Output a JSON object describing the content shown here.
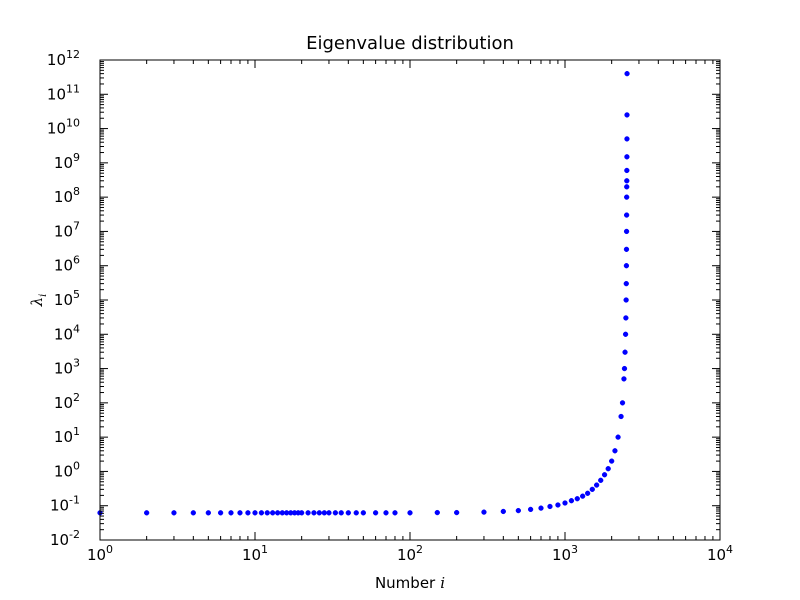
{
  "chart_data": {
    "type": "scatter",
    "title": "Eigenvalue distribution",
    "xlabel": "Number",
    "xlabel_var": "i",
    "ylabel_var": "λ",
    "ylabel_sub": "i",
    "x_scale": "log",
    "y_scale": "log",
    "xlim": [
      1,
      10000
    ],
    "ylim": [
      0.01,
      1000000000000
    ],
    "grid": false,
    "marker_color": "#0000ff",
    "x_ticks": [
      {
        "base": "10",
        "exp": "0"
      },
      {
        "base": "10",
        "exp": "1"
      },
      {
        "base": "10",
        "exp": "2"
      },
      {
        "base": "10",
        "exp": "3"
      },
      {
        "base": "10",
        "exp": "4"
      }
    ],
    "y_ticks": [
      {
        "base": "10",
        "exp": "-2"
      },
      {
        "base": "10",
        "exp": "-1"
      },
      {
        "base": "10",
        "exp": "0"
      },
      {
        "base": "10",
        "exp": "1"
      },
      {
        "base": "10",
        "exp": "2"
      },
      {
        "base": "10",
        "exp": "3"
      },
      {
        "base": "10",
        "exp": "4"
      },
      {
        "base": "10",
        "exp": "5"
      },
      {
        "base": "10",
        "exp": "6"
      },
      {
        "base": "10",
        "exp": "7"
      },
      {
        "base": "10",
        "exp": "8"
      },
      {
        "base": "10",
        "exp": "9"
      },
      {
        "base": "10",
        "exp": "10"
      },
      {
        "base": "10",
        "exp": "11"
      },
      {
        "base": "10",
        "exp": "12"
      }
    ],
    "series": [
      {
        "points": [
          [
            1,
            0.062
          ],
          [
            2,
            0.062
          ],
          [
            3,
            0.062
          ],
          [
            4,
            0.062
          ],
          [
            5,
            0.062
          ],
          [
            6,
            0.062
          ],
          [
            7,
            0.062
          ],
          [
            8,
            0.062
          ],
          [
            9,
            0.062
          ],
          [
            10,
            0.062
          ],
          [
            11,
            0.062
          ],
          [
            12,
            0.062
          ],
          [
            13,
            0.062
          ],
          [
            14,
            0.062
          ],
          [
            15,
            0.062
          ],
          [
            16,
            0.062
          ],
          [
            17,
            0.062
          ],
          [
            18,
            0.062
          ],
          [
            19,
            0.062
          ],
          [
            20,
            0.062
          ],
          [
            22,
            0.062
          ],
          [
            24,
            0.062
          ],
          [
            26,
            0.062
          ],
          [
            28,
            0.062
          ],
          [
            30,
            0.062
          ],
          [
            33,
            0.062
          ],
          [
            36,
            0.062
          ],
          [
            40,
            0.062
          ],
          [
            45,
            0.062
          ],
          [
            50,
            0.062
          ],
          [
            60,
            0.062
          ],
          [
            70,
            0.062
          ],
          [
            80,
            0.062
          ],
          [
            100,
            0.062
          ],
          [
            150,
            0.063
          ],
          [
            200,
            0.063
          ],
          [
            300,
            0.065
          ],
          [
            400,
            0.068
          ],
          [
            500,
            0.072
          ],
          [
            600,
            0.078
          ],
          [
            700,
            0.085
          ],
          [
            800,
            0.095
          ],
          [
            900,
            0.105
          ],
          [
            1000,
            0.12
          ],
          [
            1100,
            0.14
          ],
          [
            1200,
            0.16
          ],
          [
            1300,
            0.19
          ],
          [
            1400,
            0.23
          ],
          [
            1500,
            0.3
          ],
          [
            1600,
            0.4
          ],
          [
            1700,
            0.55
          ],
          [
            1800,
            0.8
          ],
          [
            1900,
            1.2
          ],
          [
            2000,
            2
          ],
          [
            2100,
            4
          ],
          [
            2200,
            10
          ],
          [
            2300,
            40
          ],
          [
            2350,
            100
          ],
          [
            2400,
            500
          ],
          [
            2420,
            1000
          ],
          [
            2440,
            3000
          ],
          [
            2460,
            10000
          ],
          [
            2470,
            30000
          ],
          [
            2480,
            100000
          ],
          [
            2485,
            300000
          ],
          [
            2490,
            1000000
          ],
          [
            2493,
            3000000
          ],
          [
            2496,
            10000000
          ],
          [
            2498,
            30000000
          ],
          [
            2500,
            100000000
          ],
          [
            2502,
            200000000
          ],
          [
            2504,
            300000000
          ],
          [
            2506,
            600000000
          ],
          [
            2508,
            1500000000
          ],
          [
            2510,
            5000000000
          ],
          [
            2512,
            25000000000
          ],
          [
            2514,
            400000000000
          ]
        ]
      }
    ]
  }
}
